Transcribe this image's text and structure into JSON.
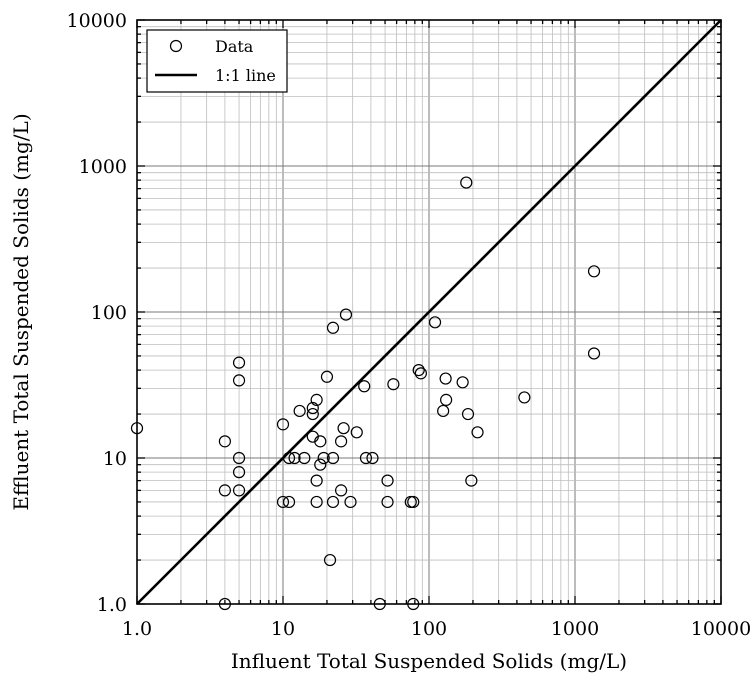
{
  "chart_data": {
    "type": "scatter",
    "xlabel": "Influent Total Suspended Solids (mg/L)",
    "ylabel": "Effluent Total Suspended Solids (mg/L)",
    "xscale": "log",
    "yscale": "log",
    "xlim": [
      1,
      10000
    ],
    "ylim": [
      1,
      10000
    ],
    "xticks": [
      "1.0",
      "10",
      "100",
      "1000",
      "10000"
    ],
    "yticks": [
      "1.0",
      "10",
      "100",
      "1000",
      "10000"
    ],
    "grid": true,
    "legend": {
      "placement": "top-left",
      "entries": [
        {
          "label": "Data",
          "marker": "circle"
        },
        {
          "label": "1:1 line",
          "marker": "line"
        }
      ]
    },
    "series": [
      {
        "name": "Data",
        "points": [
          [
            1.0,
            16
          ],
          [
            4,
            13
          ],
          [
            4,
            6
          ],
          [
            4,
            1.0
          ],
          [
            5,
            45
          ],
          [
            5,
            34
          ],
          [
            5,
            10
          ],
          [
            5,
            8
          ],
          [
            5,
            6
          ],
          [
            10,
            17
          ],
          [
            10,
            5
          ],
          [
            11,
            10
          ],
          [
            11,
            5
          ],
          [
            12,
            10
          ],
          [
            13,
            21
          ],
          [
            14,
            10
          ],
          [
            16,
            22
          ],
          [
            16,
            20
          ],
          [
            16,
            14
          ],
          [
            17,
            25
          ],
          [
            17,
            7
          ],
          [
            17,
            5
          ],
          [
            18,
            13
          ],
          [
            18,
            9
          ],
          [
            19,
            10
          ],
          [
            20,
            36
          ],
          [
            21,
            2
          ],
          [
            22,
            78
          ],
          [
            22,
            10
          ],
          [
            22,
            5
          ],
          [
            25,
            13
          ],
          [
            25,
            6
          ],
          [
            26,
            16
          ],
          [
            27,
            96
          ],
          [
            29,
            5
          ],
          [
            32,
            15
          ],
          [
            36,
            31
          ],
          [
            37,
            10
          ],
          [
            41,
            10
          ],
          [
            46,
            1.0
          ],
          [
            52,
            7
          ],
          [
            52,
            5
          ],
          [
            57,
            32
          ],
          [
            75,
            5
          ],
          [
            78,
            5
          ],
          [
            78,
            1.0
          ],
          [
            85,
            40
          ],
          [
            88,
            38
          ],
          [
            110,
            85
          ],
          [
            125,
            21
          ],
          [
            130,
            35
          ],
          [
            131,
            25
          ],
          [
            170,
            33
          ],
          [
            180,
            770
          ],
          [
            185,
            20
          ],
          [
            195,
            7
          ],
          [
            215,
            15
          ],
          [
            450,
            26
          ],
          [
            1350,
            190
          ],
          [
            1350,
            52
          ]
        ]
      },
      {
        "name": "1:1 line",
        "points": [
          [
            1,
            1
          ],
          [
            10000,
            10000
          ]
        ]
      }
    ]
  }
}
